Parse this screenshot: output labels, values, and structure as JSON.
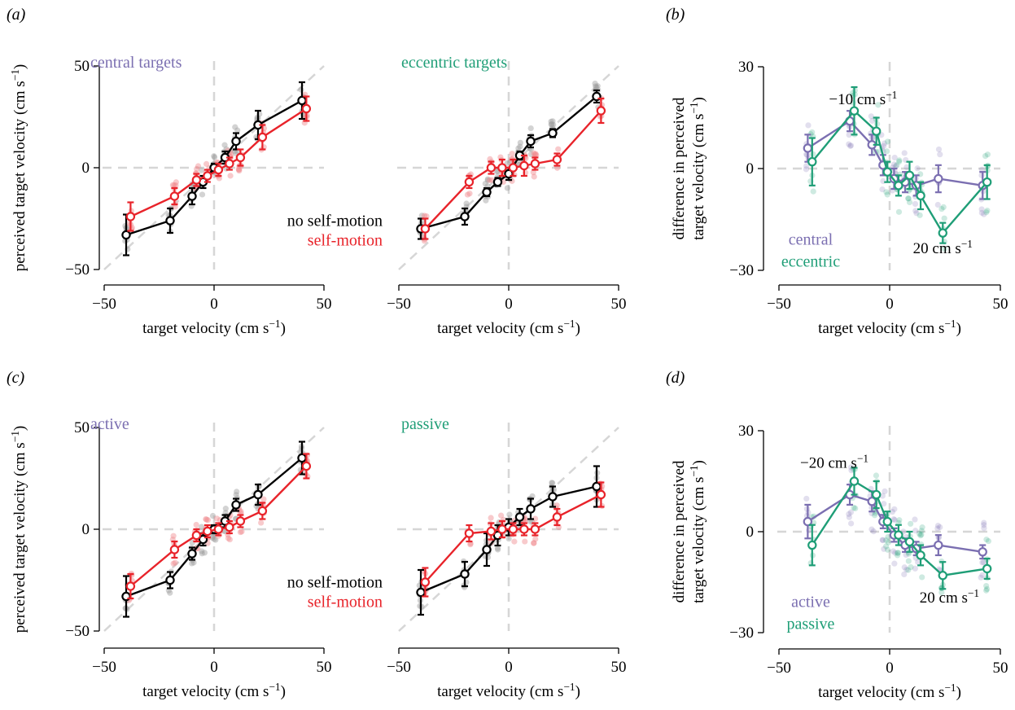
{
  "panel_labels": {
    "a": "(a)",
    "b": "(b)",
    "c": "(c)",
    "d": "(d)"
  },
  "colors": {
    "no_self_motion": "#000000",
    "self_motion": "#e8232a",
    "central": "#7b6fb1",
    "eccentric": "#1f9e77",
    "grey_raw": "#9e9e9e",
    "red_raw": "#f08a8d",
    "reference": "#d6d6d6"
  },
  "chart_data": [
    {
      "id": "a-central",
      "type": "line",
      "title": "central targets",
      "xlabel": "target velocity (cm s−1)",
      "ylabel": "perceived target velocity (cm s−1)",
      "xlim": [
        -50,
        50
      ],
      "ylim": [
        -50,
        50
      ],
      "xticks": [
        -50,
        0,
        50
      ],
      "yticks": [
        -50,
        0,
        50
      ],
      "reference_lines": [
        "identity",
        "x=0",
        "y=0"
      ],
      "series": [
        {
          "key": "no_self_motion",
          "x": [
            -40,
            -20,
            -10,
            -5,
            0,
            5,
            10,
            20,
            40
          ],
          "y": [
            -33,
            -26,
            -14,
            -7,
            0,
            5,
            13,
            21,
            33
          ],
          "err": [
            10,
            6,
            4,
            3,
            2,
            3,
            4,
            7,
            9
          ]
        },
        {
          "key": "self_motion",
          "x": [
            -38,
            -18,
            -8,
            -3,
            2,
            7,
            12,
            22,
            42
          ],
          "y": [
            -24,
            -14,
            -6,
            -4,
            -1,
            2,
            5,
            15,
            29
          ],
          "err": [
            7,
            4,
            3,
            3,
            3,
            3,
            4,
            6,
            6
          ]
        }
      ]
    },
    {
      "id": "a-eccentric",
      "type": "line",
      "title": "eccentric targets",
      "xlabel": "target velocity (cm s−1)",
      "xlim": [
        -50,
        50
      ],
      "ylim": [
        -50,
        50
      ],
      "xticks": [
        -50,
        0,
        50
      ],
      "reference_lines": [
        "identity",
        "x=0",
        "y=0"
      ],
      "legend": {
        "position": "lower-left",
        "entries": [
          {
            "key": "no_self_motion",
            "label": "no self-motion"
          },
          {
            "key": "self_motion",
            "label": "self-motion"
          }
        ]
      },
      "series": [
        {
          "key": "no_self_motion",
          "x": [
            -40,
            -20,
            -10,
            -5,
            0,
            5,
            10,
            20,
            40
          ],
          "y": [
            -30,
            -24,
            -12,
            -7,
            -3,
            6,
            13,
            17,
            35
          ],
          "err": [
            5,
            4,
            2,
            2,
            3,
            2,
            3,
            2,
            3
          ]
        },
        {
          "key": "self_motion",
          "x": [
            -38,
            -18,
            -8,
            -3,
            2,
            7,
            12,
            22,
            42
          ],
          "y": [
            -30,
            -7,
            0,
            0,
            0,
            1,
            2,
            4,
            28
          ],
          "err": [
            5,
            3,
            3,
            4,
            4,
            5,
            3,
            3,
            6
          ]
        }
      ]
    },
    {
      "id": "b",
      "type": "line",
      "xlabel": "target velocity (cm s−1)",
      "ylabel": "difference in perceived target velocity (cm s−1)",
      "xlim": [
        -50,
        50
      ],
      "ylim": [
        -30,
        30
      ],
      "xticks": [
        -50,
        0,
        50
      ],
      "yticks": [
        -30,
        0,
        30
      ],
      "legend": {
        "position": "lower-left",
        "entries": [
          {
            "key": "central",
            "label": "central"
          },
          {
            "key": "eccentric",
            "label": "eccentric"
          }
        ]
      },
      "annotations": [
        {
          "text": "−10 cm s−1",
          "x": -12,
          "y": 19
        },
        {
          "text": "20 cm s−1",
          "x": 24,
          "y": -25
        }
      ],
      "series": [
        {
          "key": "central",
          "x": [
            -37,
            -18,
            -8,
            -3,
            2,
            7,
            12,
            22,
            42
          ],
          "y": [
            6,
            14,
            7,
            1,
            -3,
            -4,
            -5,
            -3,
            -5
          ],
          "err": [
            4,
            3,
            3,
            3,
            3,
            3,
            3,
            4,
            4
          ]
        },
        {
          "key": "eccentric",
          "x": [
            -35,
            -16,
            -6,
            -1,
            4,
            9,
            14,
            24,
            44
          ],
          "y": [
            2,
            17,
            11,
            -1,
            -5,
            -2,
            -8,
            -19,
            -4
          ],
          "err": [
            7,
            7,
            4,
            3,
            3,
            4,
            4,
            3,
            5
          ]
        }
      ]
    },
    {
      "id": "c-active",
      "type": "line",
      "title": "active",
      "xlabel": "target velocity (cm s−1)",
      "ylabel": "perceived target velocity (cm s−1)",
      "xlim": [
        -50,
        50
      ],
      "ylim": [
        -50,
        50
      ],
      "xticks": [
        -50,
        0,
        50
      ],
      "yticks": [
        -50,
        0,
        50
      ],
      "reference_lines": [
        "identity",
        "x=0",
        "y=0"
      ],
      "series": [
        {
          "key": "no_self_motion",
          "x": [
            -40,
            -20,
            -10,
            -5,
            0,
            5,
            10,
            20,
            40
          ],
          "y": [
            -33,
            -25,
            -12,
            -5,
            0,
            4,
            12,
            17,
            35
          ],
          "err": [
            10,
            4,
            3,
            3,
            2,
            3,
            3,
            5,
            8
          ]
        },
        {
          "key": "self_motion",
          "x": [
            -38,
            -18,
            -8,
            -3,
            2,
            7,
            12,
            22,
            42
          ],
          "y": [
            -28,
            -10,
            -3,
            -1,
            0,
            1,
            4,
            9,
            31
          ],
          "err": [
            6,
            4,
            3,
            3,
            3,
            3,
            3,
            4,
            6
          ]
        }
      ]
    },
    {
      "id": "c-passive",
      "type": "line",
      "title": "passive",
      "xlabel": "target velocity (cm s−1)",
      "xlim": [
        -50,
        50
      ],
      "ylim": [
        -50,
        50
      ],
      "xticks": [
        -50,
        0,
        50
      ],
      "reference_lines": [
        "identity",
        "x=0",
        "y=0"
      ],
      "legend": {
        "position": "lower-left",
        "entries": [
          {
            "key": "no_self_motion",
            "label": "no self-motion"
          },
          {
            "key": "self_motion",
            "label": "self-motion"
          }
        ]
      },
      "series": [
        {
          "key": "no_self_motion",
          "x": [
            -40,
            -20,
            -10,
            -5,
            0,
            5,
            10,
            20,
            40
          ],
          "y": [
            -31,
            -22,
            -10,
            -3,
            1,
            6,
            10,
            16,
            21
          ],
          "err": [
            11,
            6,
            8,
            5,
            4,
            4,
            5,
            5,
            10
          ]
        },
        {
          "key": "self_motion",
          "x": [
            -38,
            -18,
            -8,
            -3,
            2,
            7,
            12,
            22,
            42
          ],
          "y": [
            -26,
            -2,
            -1,
            0,
            0,
            0,
            0,
            6,
            17
          ],
          "err": [
            7,
            4,
            4,
            4,
            3,
            3,
            3,
            4,
            6
          ]
        }
      ]
    },
    {
      "id": "d",
      "type": "line",
      "xlabel": "target velocity (cm s−1)",
      "ylabel": "difference in perceived target velocity (cm s−1)",
      "xlim": [
        -50,
        50
      ],
      "ylim": [
        -30,
        30
      ],
      "xticks": [
        -50,
        0,
        50
      ],
      "yticks": [
        -30,
        0,
        30
      ],
      "legend": {
        "position": "lower-left",
        "entries": [
          {
            "key": "central",
            "label": "active"
          },
          {
            "key": "eccentric",
            "label": "passive"
          }
        ]
      },
      "annotations": [
        {
          "text": "−20 cm s−1",
          "x": -25,
          "y": 19
        },
        {
          "text": "20 cm s−1",
          "x": 27,
          "y": -21
        }
      ],
      "series": [
        {
          "key": "central",
          "x": [
            -37,
            -18,
            -8,
            -3,
            2,
            7,
            12,
            22,
            42
          ],
          "y": [
            3,
            11,
            9,
            3,
            -1,
            -4,
            -5,
            -4,
            -6
          ],
          "err": [
            5,
            3,
            3,
            2,
            2,
            2,
            2,
            3,
            2
          ]
        },
        {
          "key": "eccentric",
          "x": [
            -35,
            -16,
            -6,
            -1,
            4,
            9,
            14,
            24,
            44
          ],
          "y": [
            -4,
            15,
            11,
            3,
            -1,
            -3,
            -7,
            -13,
            -11
          ],
          "err": [
            6,
            4,
            4,
            3,
            3,
            3,
            3,
            4,
            3
          ]
        }
      ]
    }
  ]
}
